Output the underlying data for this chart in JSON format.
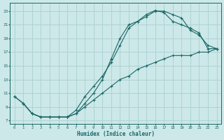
{
  "xlabel": "Humidex (Indice chaleur)",
  "background_color": "#cce8e8",
  "grid_color": "#aacfcf",
  "line_color": "#1a6666",
  "xlim": [
    -0.5,
    23.5
  ],
  "ylim": [
    6.5,
    24.2
  ],
  "xticks": [
    0,
    1,
    2,
    3,
    4,
    5,
    6,
    7,
    8,
    9,
    10,
    11,
    12,
    13,
    14,
    15,
    16,
    17,
    18,
    19,
    20,
    21,
    22,
    23
  ],
  "yticks": [
    7,
    9,
    11,
    13,
    15,
    17,
    19,
    21,
    23
  ],
  "curve1_x": [
    0,
    1,
    2,
    3,
    4,
    5,
    6,
    7,
    8,
    9,
    10,
    11,
    12,
    13,
    14,
    15,
    16,
    17,
    18,
    19,
    20,
    21,
    22,
    23
  ],
  "curve1_y": [
    10.5,
    9.5,
    8.0,
    7.5,
    7.5,
    7.5,
    7.5,
    8.0,
    9.5,
    11.0,
    13.0,
    16.0,
    19.0,
    21.0,
    21.5,
    22.2,
    23.0,
    23.0,
    22.5,
    22.0,
    20.2,
    19.5,
    18.0,
    17.5
  ],
  "curve2_x": [
    1,
    2,
    3,
    4,
    5,
    6,
    7,
    8,
    9,
    10,
    11,
    12,
    13,
    14,
    15,
    16,
    17,
    18,
    19,
    20,
    21,
    22,
    23
  ],
  "curve2_y": [
    9.5,
    8.0,
    7.5,
    7.5,
    7.5,
    7.5,
    8.5,
    10.5,
    12.0,
    13.5,
    15.5,
    18.0,
    20.5,
    21.5,
    22.5,
    23.1,
    22.8,
    21.5,
    21.0,
    20.5,
    19.8,
    17.5,
    17.5
  ],
  "curve3_x": [
    0,
    1,
    2,
    3,
    4,
    5,
    6,
    7,
    8,
    9,
    10,
    11,
    12,
    13,
    14,
    15,
    16,
    17,
    18,
    19,
    20,
    21,
    22,
    23
  ],
  "curve3_y": [
    10.5,
    9.5,
    8.0,
    7.5,
    7.5,
    7.5,
    7.5,
    8.0,
    9.0,
    10.0,
    11.0,
    12.0,
    13.0,
    13.5,
    14.5,
    15.0,
    15.5,
    16.0,
    16.5,
    16.5,
    16.5,
    17.0,
    17.0,
    17.5
  ]
}
